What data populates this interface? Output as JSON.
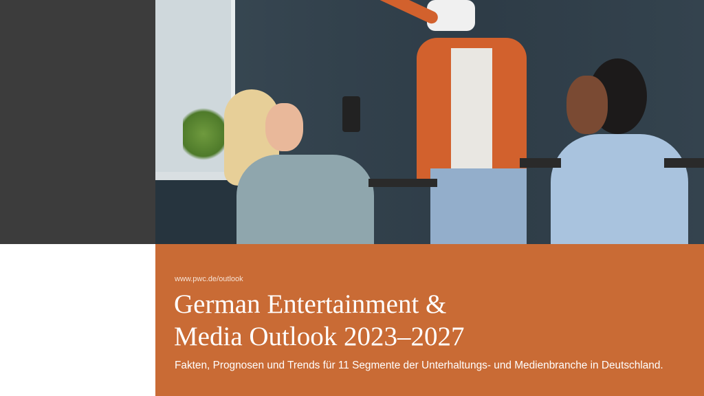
{
  "cover": {
    "url": "www.pwc.de/outlook",
    "title_line1": "German Entertainment &",
    "title_line2": "Media Outlook 2023–2027",
    "subtitle": "Fakten, Prognosen und Trends für 11 Segmente der Unterhaltungs- und Medienbranche in Deutschland."
  },
  "colors": {
    "accent": "#c96b35",
    "dark_panel": "#3c3c3c"
  },
  "photo": {
    "icon": "photo-people-vr-headset"
  }
}
